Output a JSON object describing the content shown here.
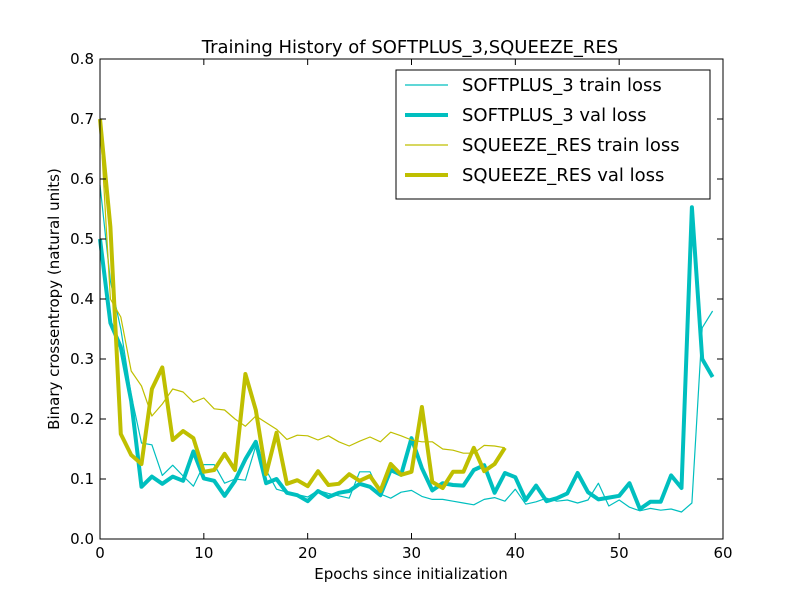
{
  "chart_data": {
    "type": "line",
    "title": "Training History of SOFTPLUS_3,SQUEEZE_RES",
    "xlabel": "Epochs since initialization",
    "ylabel": "Binary crossentropy (natural units)",
    "xlim": [
      0,
      60
    ],
    "ylim": [
      0.0,
      0.8
    ],
    "xticks": [
      "0",
      "10",
      "20",
      "30",
      "40",
      "50",
      "60"
    ],
    "yticks": [
      "0.0",
      "0.1",
      "0.2",
      "0.3",
      "0.4",
      "0.5",
      "0.6",
      "0.7",
      "0.8"
    ],
    "grid": false,
    "legend_position": "top-right",
    "series": [
      {
        "name": "SOFTPLUS_3 train loss",
        "color": "#00bfbf",
        "style": "thin",
        "x": [
          0,
          1,
          2,
          3,
          4,
          5,
          6,
          7,
          8,
          9,
          10,
          11,
          12,
          13,
          14,
          15,
          16,
          17,
          18,
          19,
          20,
          21,
          22,
          23,
          24,
          25,
          26,
          27,
          28,
          29,
          30,
          31,
          32,
          33,
          34,
          35,
          36,
          37,
          38,
          39,
          40,
          41,
          42,
          43,
          44,
          45,
          46,
          47,
          48,
          49,
          50,
          51,
          52,
          53,
          54,
          55,
          56,
          57,
          58,
          59
        ],
        "y": [
          0.59,
          0.43,
          0.35,
          0.24,
          0.16,
          0.157,
          0.106,
          0.123,
          0.105,
          0.088,
          0.124,
          0.124,
          0.093,
          0.1,
          0.098,
          0.155,
          0.115,
          0.083,
          0.078,
          0.074,
          0.07,
          0.081,
          0.076,
          0.072,
          0.068,
          0.112,
          0.112,
          0.075,
          0.068,
          0.078,
          0.081,
          0.071,
          0.066,
          0.066,
          0.063,
          0.06,
          0.057,
          0.066,
          0.069,
          0.063,
          0.083,
          0.058,
          0.062,
          0.068,
          0.063,
          0.065,
          0.06,
          0.065,
          0.093,
          0.055,
          0.065,
          0.053,
          0.047,
          0.051,
          0.048,
          0.05,
          0.045,
          0.06,
          0.352,
          0.38
        ]
      },
      {
        "name": "SOFTPLUS_3 val loss",
        "color": "#00bfbf",
        "style": "thick",
        "x": [
          0,
          1,
          2,
          3,
          4,
          5,
          6,
          7,
          8,
          9,
          10,
          11,
          12,
          13,
          14,
          15,
          16,
          17,
          18,
          19,
          20,
          21,
          22,
          23,
          24,
          25,
          26,
          27,
          28,
          29,
          30,
          31,
          32,
          33,
          34,
          35,
          36,
          37,
          38,
          39,
          40,
          41,
          42,
          43,
          44,
          45,
          46,
          47,
          48,
          49,
          50,
          51,
          52,
          53,
          54,
          55,
          56,
          57,
          58,
          59
        ],
        "y": [
          0.5,
          0.36,
          0.32,
          0.23,
          0.087,
          0.104,
          0.092,
          0.104,
          0.097,
          0.146,
          0.101,
          0.097,
          0.072,
          0.097,
          0.133,
          0.162,
          0.093,
          0.1,
          0.077,
          0.073,
          0.063,
          0.08,
          0.07,
          0.077,
          0.08,
          0.092,
          0.087,
          0.073,
          0.115,
          0.107,
          0.168,
          0.118,
          0.081,
          0.093,
          0.09,
          0.089,
          0.115,
          0.123,
          0.077,
          0.11,
          0.103,
          0.065,
          0.089,
          0.063,
          0.068,
          0.076,
          0.11,
          0.078,
          0.066,
          0.069,
          0.072,
          0.093,
          0.05,
          0.062,
          0.062,
          0.106,
          0.085,
          0.553,
          0.3,
          0.27
        ]
      },
      {
        "name": "SQUEEZE_RES train loss",
        "color": "#bfbf00",
        "style": "thin",
        "x": [
          0,
          1,
          2,
          3,
          4,
          5,
          6,
          7,
          8,
          9,
          10,
          11,
          12,
          13,
          14,
          15,
          16,
          17,
          18,
          19,
          20,
          21,
          22,
          23,
          24,
          25,
          26,
          27,
          28,
          29,
          30,
          31,
          32,
          33,
          34,
          35,
          36,
          37,
          38,
          39
        ],
        "y": [
          0.7,
          0.4,
          0.37,
          0.28,
          0.255,
          0.205,
          0.225,
          0.25,
          0.245,
          0.228,
          0.235,
          0.217,
          0.215,
          0.2,
          0.188,
          0.205,
          0.194,
          0.183,
          0.166,
          0.173,
          0.172,
          0.165,
          0.172,
          0.162,
          0.155,
          0.163,
          0.17,
          0.162,
          0.178,
          0.172,
          0.165,
          0.162,
          0.162,
          0.15,
          0.148,
          0.143,
          0.143,
          0.156,
          0.155,
          0.152
        ]
      },
      {
        "name": "SQUEEZE_RES val loss",
        "color": "#bfbf00",
        "style": "thick",
        "x": [
          0,
          1,
          2,
          3,
          4,
          5,
          6,
          7,
          8,
          9,
          10,
          11,
          12,
          13,
          14,
          15,
          16,
          17,
          18,
          19,
          20,
          21,
          22,
          23,
          24,
          25,
          26,
          27,
          28,
          29,
          30,
          31,
          32,
          33,
          34,
          35,
          36,
          37,
          38,
          39
        ],
        "y": [
          0.7,
          0.52,
          0.175,
          0.14,
          0.125,
          0.25,
          0.286,
          0.165,
          0.18,
          0.168,
          0.112,
          0.115,
          0.142,
          0.115,
          0.275,
          0.215,
          0.108,
          0.177,
          0.092,
          0.098,
          0.088,
          0.113,
          0.09,
          0.092,
          0.108,
          0.097,
          0.105,
          0.08,
          0.125,
          0.107,
          0.112,
          0.22,
          0.095,
          0.085,
          0.112,
          0.112,
          0.152,
          0.113,
          0.125,
          0.152
        ]
      }
    ]
  }
}
